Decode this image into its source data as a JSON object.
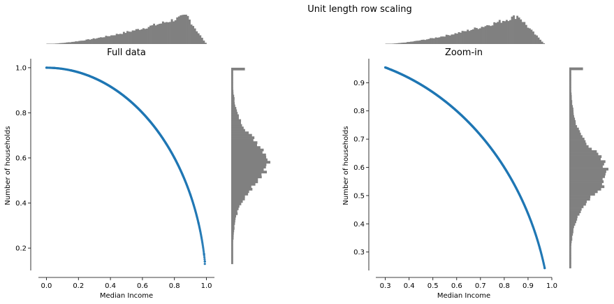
{
  "figure": {
    "suptitle": "Unit length row scaling"
  },
  "chart_data": [
    {
      "type": "scatter",
      "title": "Full data",
      "xlabel": "Median Income",
      "ylabel": "Number of households",
      "xlim": [
        -0.05,
        1.05
      ],
      "ylim": [
        0.07,
        1.04
      ],
      "xticks": [
        0.0,
        0.2,
        0.4,
        0.6,
        0.8,
        1.0
      ],
      "xtick_labels": [
        "0.0",
        "0.2",
        "0.4",
        "0.6",
        "0.8",
        "1.0"
      ],
      "yticks": [
        0.2,
        0.4,
        0.6,
        0.8,
        1.0
      ],
      "ytick_labels": [
        "0.2",
        "0.4",
        "0.6",
        "0.8",
        "1.0"
      ],
      "grid": false,
      "point_color": "#1f77b4",
      "relation": "x^2 + y^2 = 1",
      "x_range": [
        0.0,
        0.99
      ],
      "points": [
        [
          0.0,
          1.0
        ],
        [
          0.05,
          0.999
        ],
        [
          0.1,
          0.995
        ],
        [
          0.15,
          0.989
        ],
        [
          0.2,
          0.98
        ],
        [
          0.25,
          0.968
        ],
        [
          0.3,
          0.954
        ],
        [
          0.35,
          0.937
        ],
        [
          0.4,
          0.917
        ],
        [
          0.45,
          0.893
        ],
        [
          0.5,
          0.866
        ],
        [
          0.55,
          0.835
        ],
        [
          0.6,
          0.8
        ],
        [
          0.65,
          0.76
        ],
        [
          0.7,
          0.714
        ],
        [
          0.75,
          0.661
        ],
        [
          0.8,
          0.6
        ],
        [
          0.85,
          0.527
        ],
        [
          0.9,
          0.436
        ],
        [
          0.95,
          0.312
        ],
        [
          0.985,
          0.173
        ],
        [
          0.99,
          0.141
        ],
        [
          0.99,
          0.13
        ]
      ],
      "marginal_x_hist": {
        "range": [
          0.0,
          1.0
        ],
        "peak_at": 0.88,
        "color": "#808080"
      },
      "marginal_y_hist": {
        "range": [
          0.13,
          1.0
        ],
        "peak_at": 0.58,
        "color": "#808080"
      }
    },
    {
      "type": "scatter",
      "title": "Zoom-in",
      "xlabel": "Median Income",
      "ylabel": "Number of households",
      "xlim": [
        0.26,
        1.0
      ],
      "ylim": [
        0.21,
        0.985
      ],
      "xticks": [
        0.3,
        0.4,
        0.5,
        0.6,
        0.7,
        0.8,
        0.9,
        1.0
      ],
      "xtick_labels": [
        "0.3",
        "0.4",
        "0.5",
        "0.6",
        "0.7",
        "0.8",
        "0.9",
        "1.0"
      ],
      "yticks": [
        0.3,
        0.4,
        0.5,
        0.6,
        0.7,
        0.8,
        0.9
      ],
      "ytick_labels": [
        "0.3",
        "0.4",
        "0.5",
        "0.6",
        "0.7",
        "0.8",
        "0.9"
      ],
      "grid": false,
      "point_color": "#1f77b4",
      "relation": "x^2 + y^2 = 1",
      "x_range": [
        0.3,
        0.97
      ],
      "points": [
        [
          0.3,
          0.954
        ],
        [
          0.35,
          0.937
        ],
        [
          0.4,
          0.917
        ],
        [
          0.45,
          0.893
        ],
        [
          0.5,
          0.866
        ],
        [
          0.55,
          0.835
        ],
        [
          0.6,
          0.8
        ],
        [
          0.65,
          0.76
        ],
        [
          0.7,
          0.714
        ],
        [
          0.75,
          0.661
        ],
        [
          0.8,
          0.6
        ],
        [
          0.85,
          0.527
        ],
        [
          0.9,
          0.436
        ],
        [
          0.95,
          0.312
        ],
        [
          0.97,
          0.243
        ]
      ],
      "marginal_x_hist": {
        "range": [
          0.3,
          0.97
        ],
        "peak_at": 0.86,
        "color": "#808080"
      },
      "marginal_y_hist": {
        "range": [
          0.243,
          0.954
        ],
        "peak_at": 0.58,
        "color": "#808080"
      }
    }
  ]
}
